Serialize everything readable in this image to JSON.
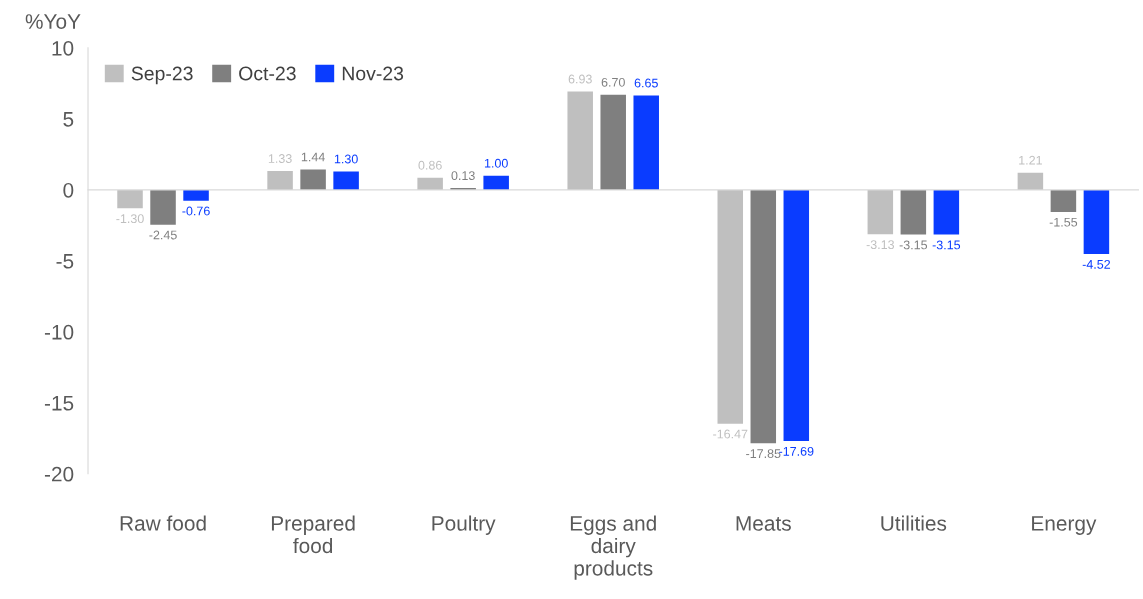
{
  "chart_data": {
    "type": "bar",
    "ylabel": "%YoY",
    "categories": [
      "Raw food",
      "Prepared\nfood",
      "Poultry",
      "Eggs and\ndairy\nproducts",
      "Meats",
      "Utilities",
      "Energy"
    ],
    "series": [
      {
        "name": "Sep-23",
        "color": "#bfbfbf",
        "values": [
          -1.3,
          1.33,
          0.86,
          6.93,
          -16.47,
          -3.13,
          1.21
        ],
        "value_labels": [
          "-1.30",
          "1.33",
          "0.86",
          "6.93",
          "-16.47",
          "-3.13",
          "1.21"
        ]
      },
      {
        "name": "Oct-23",
        "color": "#7f7f7f",
        "values": [
          -2.45,
          1.44,
          0.13,
          6.7,
          -17.85,
          -3.15,
          -1.55
        ],
        "value_labels": [
          "-2.45",
          "1.44",
          "0.13",
          "6.70",
          "-17.85",
          "-3.15",
          "-1.55"
        ]
      },
      {
        "name": "Nov-23",
        "color": "#0a3cff",
        "values": [
          -0.76,
          1.3,
          1.0,
          6.65,
          -17.69,
          -3.15,
          -4.52
        ],
        "value_labels": [
          "-0.76",
          "1.30",
          "1.00",
          "6.65",
          "-17.69",
          "-3.15",
          "-4.52"
        ]
      }
    ],
    "ylim": [
      -20,
      10
    ],
    "yticks": [
      -20,
      -15,
      -10,
      -5,
      0,
      5,
      10
    ],
    "legend": "top left"
  }
}
